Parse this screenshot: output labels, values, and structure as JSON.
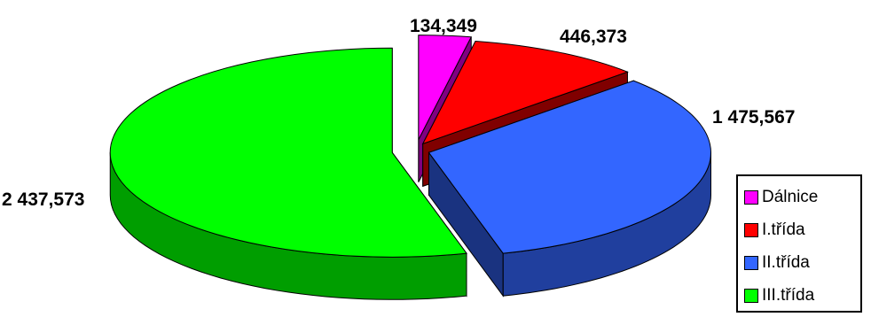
{
  "chart_data": {
    "type": "pie",
    "three_d": true,
    "exploded": true,
    "title": "",
    "legend_position": "bottom-right",
    "series": [
      {
        "name": "Dálnice",
        "value": 134.349,
        "label": "134,349",
        "color": "#ff00ff"
      },
      {
        "name": "I.třída",
        "value": 446.373,
        "label": "446,373",
        "color": "#ff0000"
      },
      {
        "name": "II.třída",
        "value": 1475.567,
        "label": "1 475,567",
        "color": "#3366ff"
      },
      {
        "name": "III.třída",
        "value": 2437.573,
        "label": "2 437,573",
        "color": "#00ff00"
      }
    ]
  }
}
